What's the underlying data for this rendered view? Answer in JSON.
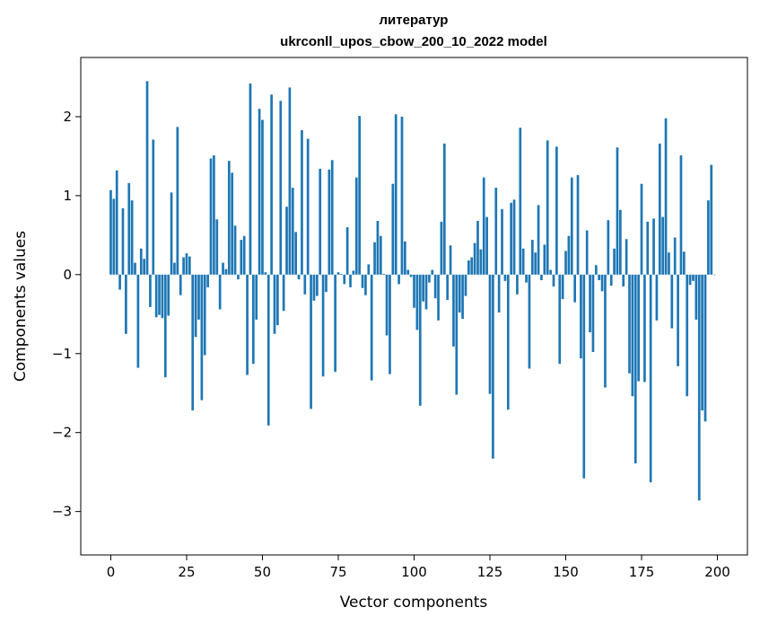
{
  "chart_data": {
    "type": "bar",
    "title": "литератур",
    "subtitle": "ukrconll_upos_cbow_200_10_2022 model",
    "xlabel": "Vector components",
    "ylabel": "Components values",
    "xlim": [
      -9.9,
      209.9
    ],
    "ylim": [
      -3.55,
      2.75
    ],
    "xticks": [
      0,
      25,
      50,
      75,
      100,
      125,
      150,
      175,
      200
    ],
    "yticks": [
      -3,
      -2,
      -1,
      0,
      1,
      2
    ],
    "ytick_labels": [
      "−3",
      "−2",
      "−1",
      "0",
      "1",
      "2"
    ],
    "grid": false,
    "bar_color": "#1f77b4",
    "x": [
      0,
      1,
      2,
      3,
      4,
      5,
      6,
      7,
      8,
      9,
      10,
      11,
      12,
      13,
      14,
      15,
      16,
      17,
      18,
      19,
      20,
      21,
      22,
      23,
      24,
      25,
      26,
      27,
      28,
      29,
      30,
      31,
      32,
      33,
      34,
      35,
      36,
      37,
      38,
      39,
      40,
      41,
      42,
      43,
      44,
      45,
      46,
      47,
      48,
      49,
      50,
      51,
      52,
      53,
      54,
      55,
      56,
      57,
      58,
      59,
      60,
      61,
      62,
      63,
      64,
      65,
      66,
      67,
      68,
      69,
      70,
      71,
      72,
      73,
      74,
      75,
      76,
      77,
      78,
      79,
      80,
      81,
      82,
      83,
      84,
      85,
      86,
      87,
      88,
      89,
      90,
      91,
      92,
      93,
      94,
      95,
      96,
      97,
      98,
      99,
      100,
      101,
      102,
      103,
      104,
      105,
      106,
      107,
      108,
      109,
      110,
      111,
      112,
      113,
      114,
      115,
      116,
      117,
      118,
      119,
      120,
      121,
      122,
      123,
      124,
      125,
      126,
      127,
      128,
      129,
      130,
      131,
      132,
      133,
      134,
      135,
      136,
      137,
      138,
      139,
      140,
      141,
      142,
      143,
      144,
      145,
      146,
      147,
      148,
      149,
      150,
      151,
      152,
      153,
      154,
      155,
      156,
      157,
      158,
      159,
      160,
      161,
      162,
      163,
      164,
      165,
      166,
      167,
      168,
      169,
      170,
      171,
      172,
      173,
      174,
      175,
      176,
      177,
      178,
      179,
      180,
      181,
      182,
      183,
      184,
      185,
      186,
      187,
      188,
      189,
      190,
      191,
      192,
      193,
      194,
      195,
      196,
      197,
      198,
      199
    ],
    "values": [
      1.07,
      0.96,
      1.32,
      -0.19,
      0.84,
      -0.75,
      1.16,
      0.94,
      0.15,
      -1.18,
      0.33,
      0.2,
      2.45,
      -0.41,
      1.71,
      -0.54,
      -0.51,
      -0.55,
      -1.3,
      -0.52,
      1.04,
      0.15,
      1.87,
      -0.26,
      0.22,
      0.27,
      0.23,
      -1.72,
      -0.79,
      -0.57,
      -1.59,
      -1.02,
      -0.16,
      1.47,
      1.51,
      0.7,
      -0.44,
      0.15,
      0.07,
      1.44,
      1.29,
      0.62,
      -0.06,
      0.44,
      0.49,
      -1.27,
      2.42,
      -1.13,
      -0.57,
      2.1,
      1.96,
      0.03,
      -1.91,
      2.28,
      -0.75,
      -0.64,
      2.2,
      -0.46,
      0.86,
      2.37,
      1.1,
      0.54,
      -0.06,
      1.83,
      -0.25,
      1.72,
      -1.7,
      -0.33,
      -0.27,
      1.34,
      -1.29,
      -0.22,
      1.33,
      1.45,
      -1.23,
      0.03,
      0.01,
      -0.12,
      0.6,
      -0.16,
      0.05,
      1.23,
      2.01,
      -0.17,
      -0.26,
      0.13,
      -1.34,
      0.41,
      0.68,
      0.49,
      0.01,
      -0.77,
      -1.26,
      1.15,
      2.03,
      -0.12,
      2.0,
      0.42,
      0.06,
      -0.03,
      -0.42,
      -0.7,
      -1.66,
      -0.34,
      -0.44,
      -0.1,
      0.06,
      -0.3,
      -0.58,
      0.67,
      1.66,
      -0.32,
      0.37,
      -0.91,
      -1.52,
      -0.48,
      -0.56,
      -0.27,
      0.18,
      0.22,
      0.4,
      0.68,
      0.32,
      1.23,
      0.73,
      -1.51,
      -2.33,
      1.1,
      -0.48,
      0.83,
      -0.08,
      -1.71,
      0.91,
      0.95,
      -0.25,
      1.86,
      0.33,
      -0.1,
      -1.19,
      0.44,
      0.28,
      0.88,
      -0.07,
      0.38,
      1.7,
      0.06,
      -0.15,
      1.62,
      -1.13,
      -0.31,
      0.3,
      0.49,
      1.23,
      -0.35,
      1.26,
      -1.06,
      -2.58,
      0.56,
      -0.73,
      -0.98,
      0.12,
      -0.07,
      -0.21,
      -1.43,
      0.69,
      -0.14,
      0.33,
      1.61,
      0.82,
      -0.15,
      0.45,
      -1.25,
      -1.54,
      -2.39,
      -1.35,
      1.15,
      -1.36,
      0.67,
      -2.63,
      0.71,
      -0.58,
      1.66,
      0.73,
      1.98,
      0.28,
      -0.68,
      0.47,
      -1.16,
      1.51,
      0.29,
      -1.54,
      -0.13,
      -0.08,
      -0.57,
      -2.86,
      -1.72,
      -1.86,
      0.94,
      1.39,
      0.0
    ]
  }
}
